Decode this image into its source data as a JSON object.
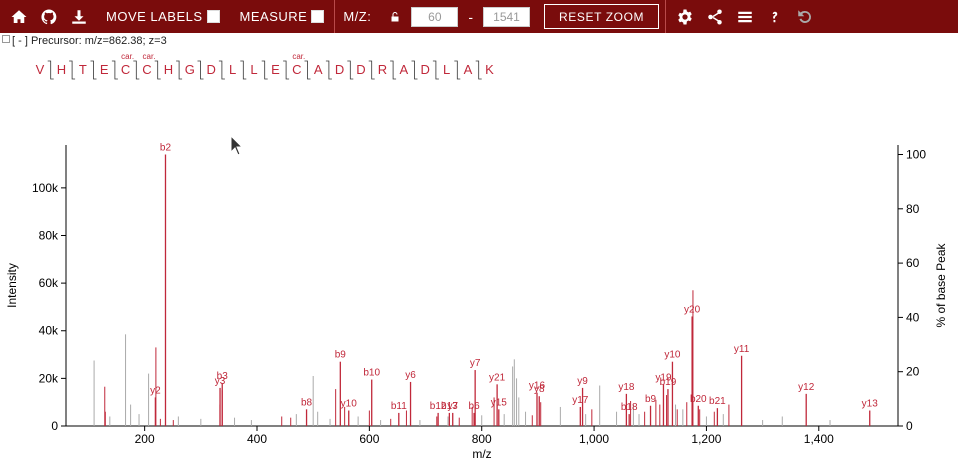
{
  "toolbar": {
    "move_labels": "MOVE LABELS",
    "measure": "MEASURE",
    "mz_label": "M/Z:",
    "mz_min": "60",
    "mz_max": "1541",
    "mz_dash": "-",
    "reset_zoom": "RESET ZOOM",
    "icons": [
      "home-icon",
      "github-icon",
      "download-icon",
      "lock-icon",
      "gear-icon",
      "share-icon",
      "menu-icon",
      "help-icon",
      "undo-icon"
    ],
    "bg_color": "#7a0c0c"
  },
  "precursor": {
    "toggle": "[ - ]",
    "text": "Precursor: m/z=862.38; z=3"
  },
  "peptide": {
    "sequence": [
      "V",
      "H",
      "T",
      "E",
      "C",
      "C",
      "H",
      "G",
      "D",
      "L",
      "L",
      "E",
      "C",
      "A",
      "D",
      "D",
      "R",
      "A",
      "D",
      "L",
      "A",
      "K"
    ],
    "modifications": [
      {
        "index": 4,
        "label": "car."
      },
      {
        "index": 5,
        "label": "car."
      },
      {
        "index": 12,
        "label": "car."
      }
    ],
    "color": "#c0283a"
  },
  "chart_data": {
    "type": "bar",
    "xlabel": "m/z",
    "ylabel": "Intensity",
    "y2label": "% of base Peak",
    "xlim": [
      60,
      1541
    ],
    "ylim": [
      0,
      118000
    ],
    "y2lim": [
      0,
      103.5
    ],
    "xticks": [
      200,
      400,
      600,
      800,
      1000,
      1200,
      1400
    ],
    "xtick_labels": [
      "200",
      "400",
      "600",
      "800",
      "1,000",
      "1,200",
      "1,400"
    ],
    "yticks": [
      0,
      20000,
      40000,
      60000,
      80000,
      100000
    ],
    "ytick_labels": [
      "0",
      "20k",
      "40k",
      "60k",
      "80k",
      "100k"
    ],
    "y2ticks": [
      0,
      20,
      40,
      60,
      80,
      100
    ],
    "y2tick_labels": [
      "0",
      "20",
      "40",
      "60",
      "80",
      "100"
    ],
    "matched_color": "#c0283a",
    "unmatched_color": "#aaaaaa",
    "labeled_peaks": [
      {
        "mz": 237.1,
        "intensity": 114000,
        "label": "b2"
      },
      {
        "mz": 219.1,
        "intensity": 12000,
        "label": "y2"
      },
      {
        "mz": 334.2,
        "intensity": 16000,
        "label": "y3"
      },
      {
        "mz": 338.1,
        "intensity": 18000,
        "label": "b3"
      },
      {
        "mz": 488.2,
        "intensity": 7000,
        "label": "b8"
      },
      {
        "mz": 548.3,
        "intensity": 27000,
        "label": "b9"
      },
      {
        "mz": 563.3,
        "intensity": 6500,
        "label": "y10"
      },
      {
        "mz": 604.2,
        "intensity": 19500,
        "label": "b10"
      },
      {
        "mz": 652.4,
        "intensity": 5500,
        "label": "b11"
      },
      {
        "mz": 673.3,
        "intensity": 18500,
        "label": "y6"
      },
      {
        "mz": 722.4,
        "intensity": 5500,
        "label": "b12"
      },
      {
        "mz": 742.4,
        "intensity": 5500,
        "label": "b13"
      },
      {
        "mz": 748.4,
        "intensity": 5500,
        "label": "y7"
      },
      {
        "mz": 788.3,
        "intensity": 23500,
        "label": "y7"
      },
      {
        "mz": 786.4,
        "intensity": 5500,
        "label": "b6"
      },
      {
        "mz": 827.4,
        "intensity": 17500,
        "label": "y21"
      },
      {
        "mz": 830.4,
        "intensity": 7000,
        "label": "y15"
      },
      {
        "mz": 898.4,
        "intensity": 14000,
        "label": "y16"
      },
      {
        "mz": 902.4,
        "intensity": 12500,
        "label": "y8"
      },
      {
        "mz": 979.5,
        "intensity": 16000,
        "label": "y9"
      },
      {
        "mz": 975.5,
        "intensity": 8000,
        "label": "y17"
      },
      {
        "mz": 1057.5,
        "intensity": 13500,
        "label": "y18"
      },
      {
        "mz": 1062.5,
        "intensity": 5000,
        "label": "b18"
      },
      {
        "mz": 1100.5,
        "intensity": 8500,
        "label": "b9"
      },
      {
        "mz": 1123.5,
        "intensity": 17500,
        "label": "y19"
      },
      {
        "mz": 1131.5,
        "intensity": 15500,
        "label": "b19"
      },
      {
        "mz": 1139.5,
        "intensity": 27000,
        "label": "y10"
      },
      {
        "mz": 1174.5,
        "intensity": 46000,
        "label": "y20"
      },
      {
        "mz": 1185.5,
        "intensity": 8500,
        "label": "b20"
      },
      {
        "mz": 1219.5,
        "intensity": 7500,
        "label": "b21"
      },
      {
        "mz": 1262.6,
        "intensity": 29500,
        "label": "y11"
      },
      {
        "mz": 1377.6,
        "intensity": 13500,
        "label": "y12"
      },
      {
        "mz": 1490.7,
        "intensity": 6500,
        "label": "y13"
      }
    ],
    "matched_peaks": [
      {
        "mz": 129,
        "intensity": 16500
      },
      {
        "mz": 130,
        "intensity": 6000
      },
      {
        "mz": 220,
        "intensity": 33000
      },
      {
        "mz": 228,
        "intensity": 3000
      },
      {
        "mz": 251,
        "intensity": 2500
      },
      {
        "mz": 334,
        "intensity": 9000
      },
      {
        "mz": 338,
        "intensity": 15000
      },
      {
        "mz": 444,
        "intensity": 4000
      },
      {
        "mz": 460,
        "intensity": 3500
      },
      {
        "mz": 540,
        "intensity": 15500
      },
      {
        "mz": 556,
        "intensity": 8000
      },
      {
        "mz": 600,
        "intensity": 6500
      },
      {
        "mz": 638,
        "intensity": 3000
      },
      {
        "mz": 666,
        "intensity": 6500
      },
      {
        "mz": 720,
        "intensity": 4000
      },
      {
        "mz": 760,
        "intensity": 3500
      },
      {
        "mz": 783,
        "intensity": 8000
      },
      {
        "mz": 822,
        "intensity": 12000
      },
      {
        "mz": 890,
        "intensity": 4500
      },
      {
        "mz": 905,
        "intensity": 10000
      },
      {
        "mz": 996,
        "intensity": 7000
      },
      {
        "mz": 1065,
        "intensity": 10500
      },
      {
        "mz": 1090,
        "intensity": 6000
      },
      {
        "mz": 1110,
        "intensity": 11000
      },
      {
        "mz": 1117,
        "intensity": 9000
      },
      {
        "mz": 1129,
        "intensity": 13000
      },
      {
        "mz": 1148,
        "intensity": 7000
      },
      {
        "mz": 1165,
        "intensity": 10000
      },
      {
        "mz": 1176,
        "intensity": 57000
      },
      {
        "mz": 1188,
        "intensity": 7000
      },
      {
        "mz": 1214,
        "intensity": 6000
      },
      {
        "mz": 1240,
        "intensity": 9000
      }
    ],
    "unmatched_peaks": [
      {
        "mz": 110,
        "intensity": 27500
      },
      {
        "mz": 138,
        "intensity": 4000
      },
      {
        "mz": 166,
        "intensity": 38500
      },
      {
        "mz": 175,
        "intensity": 9000
      },
      {
        "mz": 190,
        "intensity": 5000
      },
      {
        "mz": 207,
        "intensity": 22000
      },
      {
        "mz": 260,
        "intensity": 4000
      },
      {
        "mz": 300,
        "intensity": 3000
      },
      {
        "mz": 360,
        "intensity": 3500
      },
      {
        "mz": 390,
        "intensity": 2500
      },
      {
        "mz": 470,
        "intensity": 5000
      },
      {
        "mz": 500,
        "intensity": 21000
      },
      {
        "mz": 508,
        "intensity": 6000
      },
      {
        "mz": 530,
        "intensity": 3000
      },
      {
        "mz": 580,
        "intensity": 4000
      },
      {
        "mz": 620,
        "intensity": 2500
      },
      {
        "mz": 690,
        "intensity": 2500
      },
      {
        "mz": 740,
        "intensity": 4000
      },
      {
        "mz": 800,
        "intensity": 4500
      },
      {
        "mz": 840,
        "intensity": 5000
      },
      {
        "mz": 855,
        "intensity": 25000
      },
      {
        "mz": 858,
        "intensity": 28000
      },
      {
        "mz": 862,
        "intensity": 20000
      },
      {
        "mz": 866,
        "intensity": 12000
      },
      {
        "mz": 878,
        "intensity": 6000
      },
      {
        "mz": 940,
        "intensity": 8000
      },
      {
        "mz": 985,
        "intensity": 5000
      },
      {
        "mz": 1010,
        "intensity": 17000
      },
      {
        "mz": 1040,
        "intensity": 6000
      },
      {
        "mz": 1070,
        "intensity": 9000
      },
      {
        "mz": 1080,
        "intensity": 5000
      },
      {
        "mz": 1145,
        "intensity": 9000
      },
      {
        "mz": 1158,
        "intensity": 7000
      },
      {
        "mz": 1200,
        "intensity": 4000
      },
      {
        "mz": 1230,
        "intensity": 5000
      },
      {
        "mz": 1300,
        "intensity": 2500
      },
      {
        "mz": 1335,
        "intensity": 4000
      },
      {
        "mz": 1420,
        "intensity": 2500
      }
    ]
  }
}
